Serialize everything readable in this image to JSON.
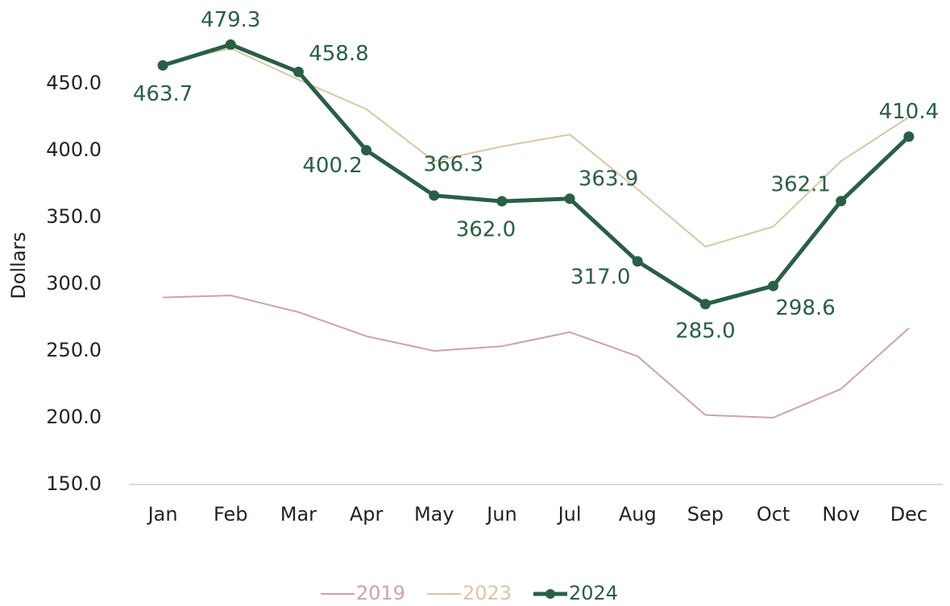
{
  "chart_data": {
    "type": "line",
    "y_label": "Dollars",
    "categories": [
      "Jan",
      "Feb",
      "Mar",
      "Apr",
      "May",
      "Jun",
      "Jul",
      "Aug",
      "Sep",
      "Oct",
      "Nov",
      "Dec"
    ],
    "series": [
      {
        "name": "2019",
        "color": "#c9a2b6",
        "values": [
          290,
          291.5,
          279,
          261,
          250,
          253.5,
          264,
          246,
          202,
          200,
          221.5,
          267
        ]
      },
      {
        "name": "2023",
        "color": "#d9c7a4",
        "values": [
          465,
          476.5,
          453,
          431,
          392,
          403,
          412,
          371,
          328,
          343,
          392,
          425
        ]
      },
      {
        "name": "2024",
        "color": "#2a5e45",
        "markers": true,
        "values": [
          463.7,
          479.3,
          458.8,
          400.2,
          366.3,
          362.0,
          363.9,
          317.0,
          285.0,
          298.6,
          362.1,
          410.4
        ],
        "value_labels": [
          "463.7",
          "479.3",
          "458.8",
          "400.2",
          "366.3",
          "362.0",
          "363.9",
          "317.0",
          "285.0",
          "298.6",
          "362.1",
          "410.4"
        ]
      }
    ],
    "ylim": [
      150,
      500
    ],
    "yticks": [
      {
        "value": 150,
        "label": "150.0"
      },
      {
        "value": 200,
        "label": "200.0"
      },
      {
        "value": 250,
        "label": "250.0"
      },
      {
        "value": 300,
        "label": "300.0"
      },
      {
        "value": 350,
        "label": "350.0"
      },
      {
        "value": 400,
        "label": "400.0"
      },
      {
        "value": 450,
        "label": "450.0"
      }
    ],
    "grid": false,
    "legend": "bottom"
  }
}
